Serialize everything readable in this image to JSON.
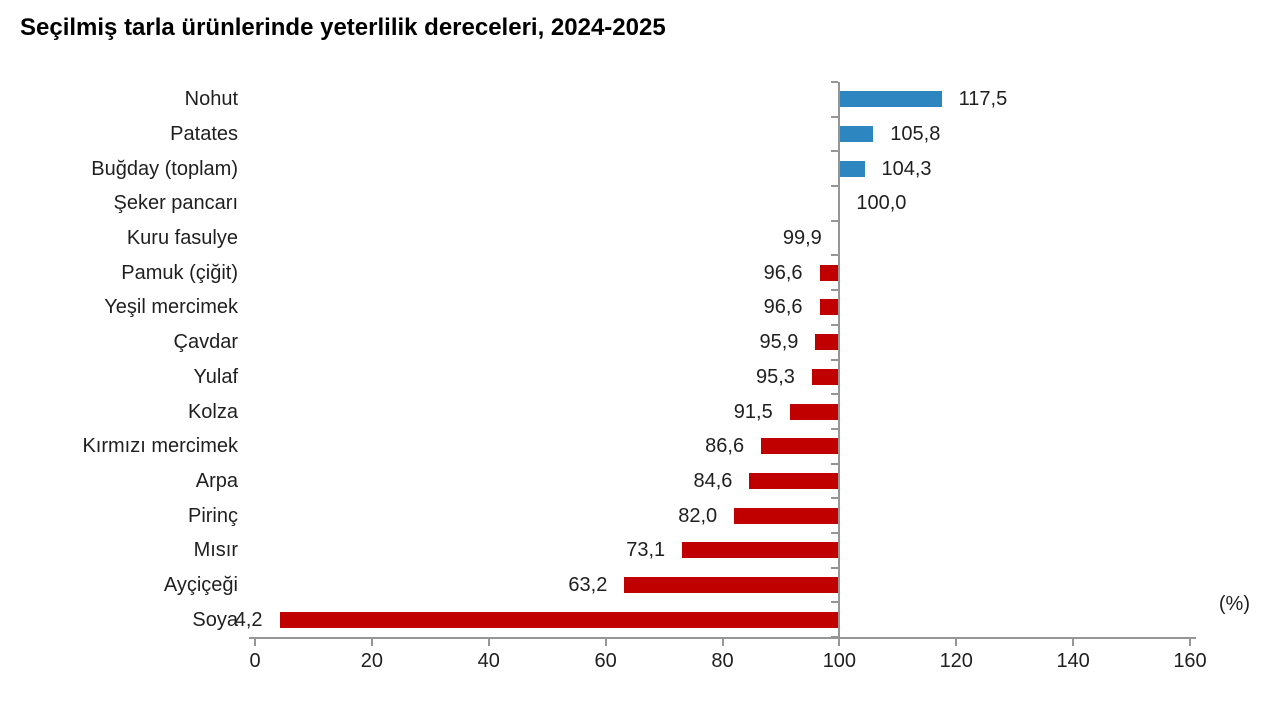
{
  "chart_data": {
    "type": "bar",
    "orientation": "horizontal",
    "title": "Seçilmiş tarla ürünlerinde yeterlilik dereceleri, 2024-2025",
    "unit_label": "(%)",
    "baseline": 100,
    "xlim": [
      0,
      160
    ],
    "x_ticks": [
      "0",
      "20",
      "40",
      "60",
      "80",
      "100",
      "120",
      "140",
      "160"
    ],
    "x_tick_values": [
      0,
      20,
      40,
      60,
      80,
      100,
      120,
      140,
      160
    ],
    "grid": false,
    "legend": false,
    "categories": [
      "Nohut",
      "Patates",
      "Buğday (toplam)",
      "Şeker pancarı",
      "Kuru fasulye",
      "Pamuk (çiğit)",
      "Yeşil mercimek",
      "Çavdar",
      "Yulaf",
      "Kolza",
      "Kırmızı mercimek",
      "Arpa",
      "Pirinç",
      "Mısır",
      "Ayçiçeği",
      "Soya"
    ],
    "values": [
      117.5,
      105.8,
      104.3,
      100.0,
      99.9,
      96.6,
      96.6,
      95.9,
      95.3,
      91.5,
      86.6,
      84.6,
      82.0,
      73.1,
      63.2,
      4.2
    ],
    "values_display": [
      "117,5",
      "105,8",
      "104,3",
      "100,0",
      "99,9",
      "96,6",
      "96,6",
      "95,9",
      "95,3",
      "91,5",
      "86,6",
      "84,6",
      "82,0",
      "73,1",
      "63,2",
      "4,2"
    ],
    "colors": {
      "above_baseline": "#2E86C1",
      "below_baseline": "#C00000",
      "axis": "#969696",
      "text": "#1F1F1F"
    }
  }
}
